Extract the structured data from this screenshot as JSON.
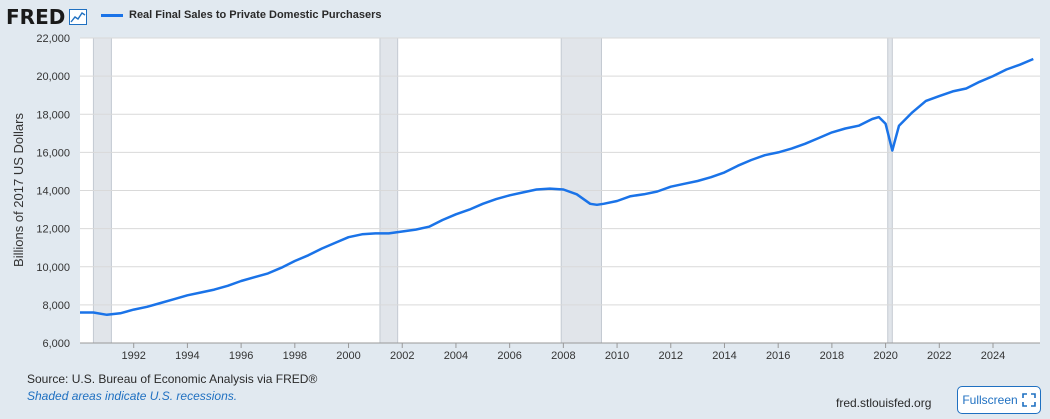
{
  "header": {
    "logo_text": "FRED",
    "logo_icon": "line-chart-icon",
    "series_label": "Real Final Sales to Private Domestic Purchasers",
    "series_color": "#1a73e8"
  },
  "footer": {
    "source": "Source: U.S. Bureau of Economic Analysis via FRED®",
    "recession_note": "Shaded areas indicate U.S. recessions.",
    "site": "fred.stlouisfed.org",
    "fullscreen_label": "Fullscreen",
    "fullscreen_icon": "expand-icon"
  },
  "chart_data": {
    "type": "line",
    "title": "",
    "xlabel": "",
    "ylabel": "Billions of 2017 US Dollars",
    "xlim": [
      1990.0,
      2025.75
    ],
    "ylim": [
      6000,
      22000
    ],
    "yticks": [
      6000,
      8000,
      10000,
      12000,
      14000,
      16000,
      18000,
      20000,
      22000
    ],
    "ytick_labels": [
      "6,000",
      "8,000",
      "10,000",
      "12,000",
      "14,000",
      "16,000",
      "18,000",
      "20,000",
      "22,000"
    ],
    "xticks": [
      1992,
      1994,
      1996,
      1998,
      2000,
      2002,
      2004,
      2006,
      2008,
      2010,
      2012,
      2014,
      2016,
      2018,
      2020,
      2022,
      2024
    ],
    "xtick_labels": [
      "1992",
      "1994",
      "1996",
      "1998",
      "2000",
      "2002",
      "2004",
      "2006",
      "2008",
      "2010",
      "2012",
      "2014",
      "2016",
      "2018",
      "2020",
      "2022",
      "2024"
    ],
    "grid": "horizontal",
    "recessions": [
      [
        1990.5,
        1991.17
      ],
      [
        2001.17,
        2001.83
      ],
      [
        2007.92,
        2009.42
      ],
      [
        2020.08,
        2020.25
      ]
    ],
    "series": [
      {
        "color": "#1a73e8",
        "x": [
          1990.0,
          1990.5,
          1991.0,
          1991.5,
          1992.0,
          1992.5,
          1993.0,
          1993.5,
          1994.0,
          1994.5,
          1995.0,
          1995.5,
          1996.0,
          1996.5,
          1997.0,
          1997.5,
          1998.0,
          1998.5,
          1999.0,
          1999.5,
          2000.0,
          2000.5,
          2001.0,
          2001.5,
          2002.0,
          2002.5,
          2003.0,
          2003.5,
          2004.0,
          2004.5,
          2005.0,
          2005.5,
          2006.0,
          2006.5,
          2007.0,
          2007.5,
          2008.0,
          2008.5,
          2009.0,
          2009.25,
          2009.5,
          2010.0,
          2010.5,
          2011.0,
          2011.5,
          2012.0,
          2012.5,
          2013.0,
          2013.5,
          2014.0,
          2014.5,
          2015.0,
          2015.5,
          2016.0,
          2016.5,
          2017.0,
          2017.5,
          2018.0,
          2018.5,
          2019.0,
          2019.5,
          2019.75,
          2020.0,
          2020.25,
          2020.5,
          2021.0,
          2021.5,
          2022.0,
          2022.5,
          2023.0,
          2023.5,
          2024.0,
          2024.5,
          2025.0,
          2025.5
        ],
        "y": [
          7600,
          7600,
          7480,
          7560,
          7750,
          7900,
          8100,
          8300,
          8500,
          8650,
          8800,
          9000,
          9250,
          9450,
          9650,
          9950,
          10300,
          10600,
          10950,
          11250,
          11550,
          11700,
          11750,
          11750,
          11850,
          11950,
          12100,
          12450,
          12750,
          13000,
          13300,
          13550,
          13750,
          13900,
          14050,
          14100,
          14050,
          13800,
          13300,
          13250,
          13300,
          13450,
          13700,
          13800,
          13950,
          14200,
          14350,
          14500,
          14700,
          14950,
          15300,
          15600,
          15850,
          16000,
          16200,
          16450,
          16750,
          17050,
          17250,
          17400,
          17750,
          17850,
          17500,
          16100,
          17400,
          18100,
          18700,
          18950,
          19200,
          19350,
          19700,
          20000,
          20350,
          20600,
          20900
        ]
      }
    ]
  }
}
